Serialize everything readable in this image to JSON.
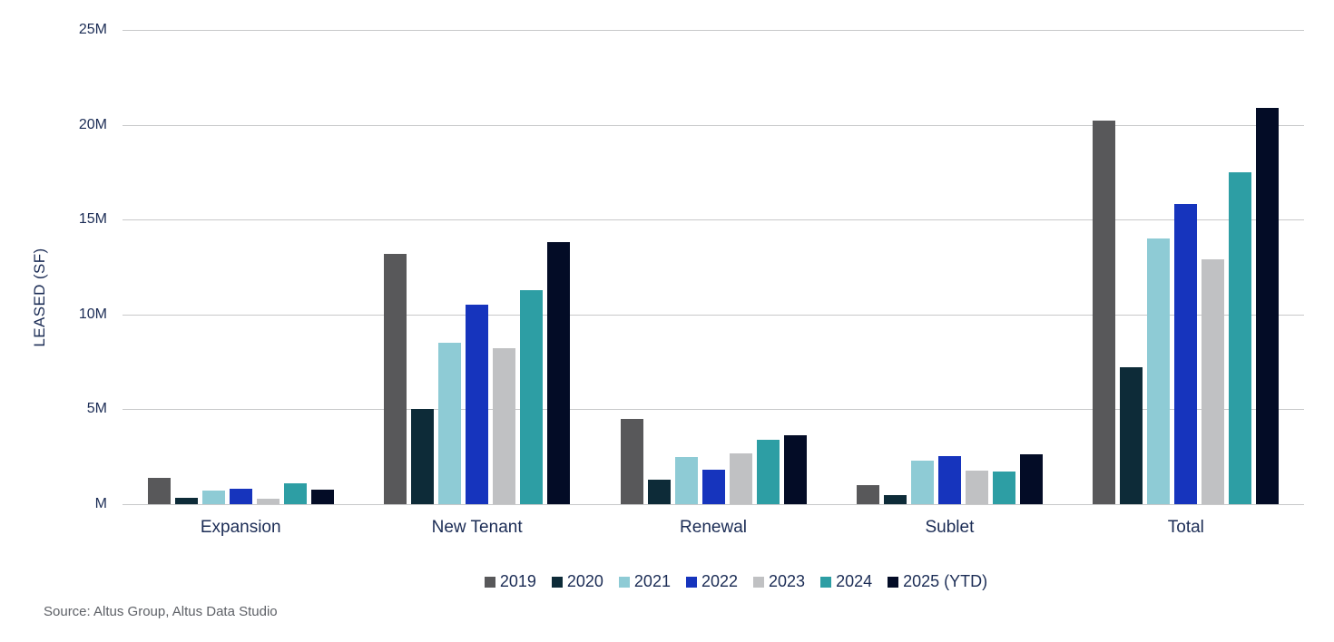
{
  "chart": {
    "source": "Source: Altus Group, Altus Data Studio"
  },
  "chart_data": {
    "type": "bar",
    "title": "",
    "xlabel": "",
    "ylabel": "LEASED (SF)",
    "ylim": [
      0,
      25
    ],
    "grid": true,
    "legend_position": "bottom",
    "yticks": [
      {
        "value": 0,
        "label": "M"
      },
      {
        "value": 5,
        "label": "5M"
      },
      {
        "value": 10,
        "label": "10M"
      },
      {
        "value": 15,
        "label": "15M"
      },
      {
        "value": 20,
        "label": "20M"
      },
      {
        "value": 25,
        "label": "25M"
      }
    ],
    "categories": [
      "Expansion",
      "New Tenant",
      "Renewal",
      "Sublet",
      "Total"
    ],
    "series": [
      {
        "name": "2019",
        "color": "#58585a",
        "values": [
          1.4,
          13.2,
          4.5,
          1.0,
          20.2
        ]
      },
      {
        "name": "2020",
        "color": "#0d2b38",
        "values": [
          0.35,
          5.0,
          1.3,
          0.5,
          7.2
        ]
      },
      {
        "name": "2021",
        "color": "#8ecbd5",
        "values": [
          0.7,
          8.5,
          2.5,
          2.3,
          14.0
        ]
      },
      {
        "name": "2022",
        "color": "#1634bd",
        "values": [
          0.8,
          10.5,
          1.8,
          2.55,
          15.8
        ]
      },
      {
        "name": "2023",
        "color": "#c0c1c3",
        "values": [
          0.3,
          8.2,
          2.7,
          1.75,
          12.9
        ]
      },
      {
        "name": "2024",
        "color": "#2d9ea4",
        "values": [
          1.1,
          11.3,
          3.4,
          1.7,
          17.5
        ]
      },
      {
        "name": "2025 (YTD)",
        "color": "#030c26",
        "values": [
          0.75,
          13.8,
          3.65,
          2.65,
          20.9
        ]
      }
    ]
  }
}
